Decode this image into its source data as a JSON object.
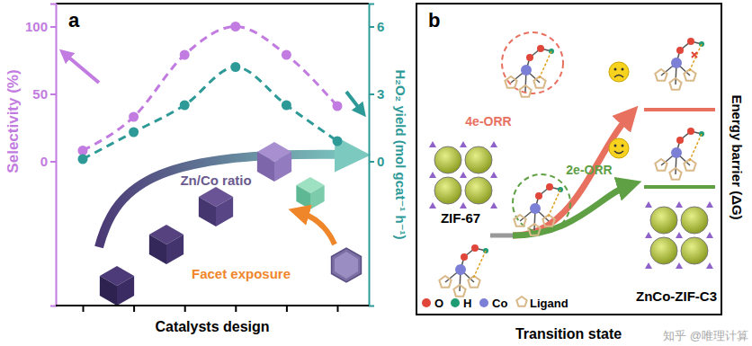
{
  "chart_data": {
    "type": "line",
    "panel_label": "a",
    "x_label": "Catalysts design",
    "y_label": "Selectivity (%)",
    "y2_label": "H₂O₂ yield (mol gcat⁻¹ h⁻¹)",
    "categories": [
      null,
      null,
      null,
      null,
      null,
      null
    ],
    "ylim": [
      -107,
      117
    ],
    "yticks": [
      0,
      50,
      100
    ],
    "y2lim": [
      -6.42,
      7.02
    ],
    "y2ticks": [
      0,
      3,
      6
    ],
    "series": [
      {
        "color": "#c27be0",
        "marker": "circle",
        "line_style": "dashed",
        "values": [
          8,
          33,
          79,
          100,
          79,
          41
        ]
      },
      {
        "color": "#2e9a98",
        "marker": "circle",
        "line_style": "dashed",
        "axis": "y2",
        "values": [
          0.1,
          1.3,
          2.5,
          4.2,
          2.5,
          0.9
        ]
      }
    ],
    "annotations": [
      "Zn/Co ratio",
      "Facet exposure"
    ]
  },
  "diagram": {
    "panel_label": "b",
    "pathways": [
      {
        "label": "4e-ORR",
        "color": "#e8705f"
      },
      {
        "label": "2e-ORR",
        "color": "#5fa045"
      }
    ],
    "structures": [
      "ZIF-67",
      "ZnCo-ZIF-C3"
    ],
    "legend": [
      {
        "label": "O",
        "color": "#e0473a"
      },
      {
        "label": "H",
        "color": "#1f9c74"
      },
      {
        "label": "Co",
        "color": "#7b7fd6"
      },
      {
        "label": "Ligand",
        "color": "#d9b98a"
      }
    ],
    "x_label": "Transition state",
    "y_label": "Energy barrier (ΔG)"
  },
  "watermark": "知乎 @唯理计算"
}
